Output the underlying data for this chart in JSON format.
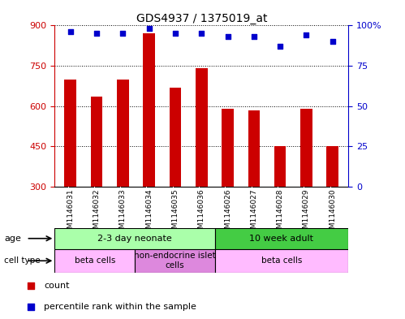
{
  "title": "GDS4937 / 1375019_at",
  "samples": [
    "GSM1146031",
    "GSM1146032",
    "GSM1146033",
    "GSM1146034",
    "GSM1146035",
    "GSM1146036",
    "GSM1146026",
    "GSM1146027",
    "GSM1146028",
    "GSM1146029",
    "GSM1146030"
  ],
  "counts": [
    700,
    635,
    700,
    870,
    670,
    740,
    590,
    585,
    450,
    590,
    450
  ],
  "percentiles": [
    96,
    95,
    95,
    98,
    95,
    95,
    93,
    93,
    87,
    94,
    90
  ],
  "ylim_left": [
    300,
    900
  ],
  "ylim_right": [
    0,
    100
  ],
  "yticks_left": [
    300,
    450,
    600,
    750,
    900
  ],
  "yticks_right": [
    0,
    25,
    50,
    75,
    100
  ],
  "bar_color": "#cc0000",
  "dot_color": "#0000cc",
  "bar_width": 0.45,
  "age_groups": [
    {
      "label": "2-3 day neonate",
      "start": 0,
      "end": 6,
      "color": "#aaffaa"
    },
    {
      "label": "10 week adult",
      "start": 6,
      "end": 11,
      "color": "#44cc44"
    }
  ],
  "cell_type_groups": [
    {
      "label": "beta cells",
      "start": 0,
      "end": 3,
      "color": "#ffbbff"
    },
    {
      "label": "non-endocrine islet\ncells",
      "start": 3,
      "end": 6,
      "color": "#dd88dd"
    },
    {
      "label": "beta cells",
      "start": 6,
      "end": 11,
      "color": "#ffbbff"
    }
  ],
  "legend_items": [
    {
      "color": "#cc0000",
      "label": "count"
    },
    {
      "color": "#0000cc",
      "label": "percentile rank within the sample"
    }
  ],
  "background_color": "#ffffff",
  "sample_bg_color": "#dddddd",
  "tick_label_color_left": "#cc0000",
  "tick_label_color_right": "#0000cc"
}
